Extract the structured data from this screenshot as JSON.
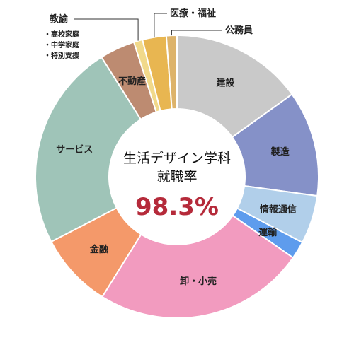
{
  "chart_data": {
    "type": "pie",
    "variant": "donut",
    "center": {
      "title_line1": "生活デザイン学科",
      "title_line2": "就職率",
      "rate": "98.3%",
      "rate_color": "#b52a3a"
    },
    "slices": [
      {
        "label": "建設",
        "value": 15.0,
        "color": "#c9c9c9"
      },
      {
        "label": "製造",
        "value": 12.0,
        "color": "#8591c8"
      },
      {
        "label": "情報通信",
        "value": 5.5,
        "color": "#b1cfea"
      },
      {
        "label": "運輸",
        "value": 2.0,
        "color": "#5e9ced"
      },
      {
        "label": "卸・小売",
        "value": 24.0,
        "color": "#f29bbf"
      },
      {
        "label": "金融",
        "value": 8.5,
        "color": "#f4996a"
      },
      {
        "label": "サービス",
        "value": 23.5,
        "color": "#9fc4b8"
      },
      {
        "label": "不動産",
        "value": 4.0,
        "color": "#bd8b71"
      },
      {
        "label": "教諭",
        "value": 1.0,
        "color": "#f1d98b",
        "external": true
      },
      {
        "label": "医療・福祉",
        "value": 2.7,
        "color": "#e8b651",
        "external": true
      },
      {
        "label": "公務員",
        "value": 1.2,
        "color": "#ddb36a",
        "external": true
      }
    ],
    "teacher_sub_items": [
      "・高校家庭",
      "・中学家庭",
      "・特別支援"
    ]
  }
}
